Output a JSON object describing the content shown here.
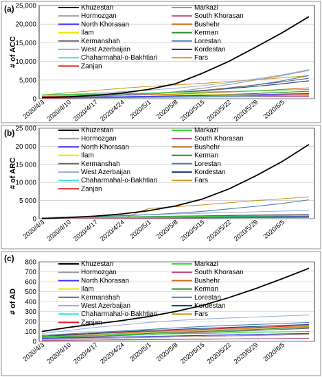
{
  "chart_data": [
    {
      "type": "line",
      "panel_label": "(a)",
      "ylabel": "# of ACC",
      "ylim": [
        0,
        25000
      ],
      "yticks": [
        0,
        5000,
        10000,
        15000,
        20000,
        25000
      ],
      "ytick_labels": [
        "0",
        "5,000",
        "10,000",
        "15,000",
        "20,000",
        "25,000"
      ],
      "grid": true,
      "legend_placement": "top-center",
      "x": [
        "2020/4/3",
        "2020/4/10",
        "2020/4/17",
        "2020/4/24",
        "2020/5/1",
        "2020/5/8",
        "2020/5/15",
        "2020/5/22",
        "2020/5/29",
        "2020/6/5",
        "2020/6/12"
      ],
      "xtick_labels": [
        "2020/4/3",
        "2020/4/10",
        "2020/4/17",
        "2020/4/24",
        "2020/5/1",
        "2020/5/8",
        "2020/5/15",
        "2020/5/22",
        "2020/5/29",
        "2020/6/5"
      ],
      "series": [
        {
          "name": "Khuzestan",
          "color": "#000000",
          "values": [
            300,
            500,
            900,
            1500,
            2500,
            4000,
            6800,
            10000,
            13800,
            17700,
            22000
          ]
        },
        {
          "name": "Markazi",
          "color": "#33dd33",
          "values": [
            1000,
            1150,
            1250,
            1350,
            1500,
            1650,
            1800,
            1950,
            2100,
            2300,
            2500
          ]
        },
        {
          "name": "Hormozgan",
          "color": "#999999",
          "values": [
            300,
            450,
            650,
            900,
            1300,
            1900,
            2800,
            3800,
            5000,
            6200,
            7600
          ]
        },
        {
          "name": "South Khorasan",
          "color": "#bb4488",
          "values": [
            150,
            200,
            250,
            300,
            350,
            400,
            450,
            500,
            550,
            600,
            650
          ]
        },
        {
          "name": "North Khorasan",
          "color": "#3333ff",
          "values": [
            400,
            450,
            500,
            550,
            650,
            750,
            850,
            1000,
            1100,
            1250,
            1400
          ]
        },
        {
          "name": "Bushehr",
          "color": "#d2691e",
          "values": [
            600,
            700,
            800,
            900,
            1050,
            1250,
            1500,
            1800,
            2100,
            2500,
            2900
          ]
        },
        {
          "name": "Ilam",
          "color": "#e8e800",
          "values": [
            800,
            850,
            900,
            950,
            1000,
            1050,
            1100,
            1150,
            1200,
            1250,
            1300
          ]
        },
        {
          "name": "Kerman",
          "color": "#2e8b2e",
          "values": [
            300,
            380,
            460,
            540,
            650,
            780,
            950,
            1150,
            1400,
            1700,
            2000
          ]
        },
        {
          "name": "Kermanshah",
          "color": "#666666",
          "values": [
            500,
            650,
            800,
            1000,
            1300,
            1700,
            2200,
            2900,
            3700,
            4500,
            5500
          ]
        },
        {
          "name": "Lorestan",
          "color": "#4a7fb5",
          "values": [
            800,
            950,
            1100,
            1250,
            1450,
            1750,
            2200,
            2800,
            3700,
            4800,
            6200
          ]
        },
        {
          "name": "West Azerbaijan",
          "color": "#9ab0d8",
          "values": [
            900,
            1200,
            1500,
            1900,
            2300,
            2800,
            3500,
            4300,
            5300,
            6400,
            7800
          ]
        },
        {
          "name": "Kordestan",
          "color": "#1f3f7a",
          "values": [
            400,
            600,
            800,
            1000,
            1300,
            1700,
            2100,
            2700,
            3300,
            4000,
            4800
          ]
        },
        {
          "name": "Chaharmahal-o-Bakhtiari",
          "color": "#44dddd",
          "values": [
            300,
            350,
            400,
            450,
            500,
            550,
            600,
            650,
            700,
            750,
            800
          ]
        },
        {
          "name": "Fars",
          "color": "#cc9922",
          "values": [
            1000,
            1600,
            2200,
            2800,
            3300,
            3700,
            4100,
            4600,
            5100,
            5600,
            6200
          ]
        },
        {
          "name": "Zanjan",
          "color": "#dd2222",
          "values": [
            200,
            260,
            320,
            380,
            450,
            520,
            600,
            700,
            800,
            950,
            1100
          ]
        }
      ]
    },
    {
      "type": "line",
      "panel_label": "(b)",
      "ylabel": "# of ARC",
      "ylim": [
        0,
        25000
      ],
      "yticks": [
        0,
        5000,
        10000,
        15000,
        20000,
        25000
      ],
      "ytick_labels": [
        "0",
        "5 000",
        "10 000",
        "15 000",
        "20 000",
        "25 000"
      ],
      "grid": true,
      "legend_placement": "top-center",
      "x": [
        "2020/4/3",
        "2020/4/10",
        "2020/4/17",
        "2020/4/24",
        "2020/5/1",
        "2020/5/8",
        "2020/5/15",
        "2020/5/22",
        "2020/5/29",
        "2020/6/5",
        "2020/6/12"
      ],
      "xtick_labels": [
        "2020/4/3",
        "2020/4/10",
        "2020/4/17",
        "2020/4/24",
        "2020/5/1",
        "2020/5/8",
        "2020/5/15",
        "2020/5/22",
        "2020/5/29",
        "2020/6/5"
      ],
      "series": [
        {
          "name": "Khuzestan",
          "color": "#000000",
          "values": [
            0,
            300,
            700,
            1300,
            2200,
            3500,
            5400,
            8200,
            11800,
            15800,
            20500
          ]
        },
        {
          "name": "Markazi",
          "color": "#33dd33",
          "values": [
            200,
            300,
            400,
            450,
            500,
            550,
            600,
            650,
            700,
            750,
            800
          ]
        },
        {
          "name": "Hormozgan",
          "color": "#999999",
          "values": [
            100,
            150,
            200,
            250,
            300,
            400,
            500,
            650,
            800,
            950,
            1100
          ]
        },
        {
          "name": "South Khorasan",
          "color": "#bb4488",
          "values": [
            50,
            80,
            110,
            140,
            170,
            200,
            230,
            260,
            290,
            320,
            350
          ]
        },
        {
          "name": "North Khorasan",
          "color": "#3333ff",
          "values": [
            100,
            150,
            200,
            250,
            300,
            350,
            400,
            450,
            500,
            550,
            600
          ]
        },
        {
          "name": "Bushehr",
          "color": "#d2691e",
          "values": [
            100,
            150,
            200,
            260,
            320,
            380,
            440,
            500,
            580,
            660,
            750
          ]
        },
        {
          "name": "Ilam",
          "color": "#e8e800",
          "values": [
            100,
            150,
            200,
            250,
            300,
            350,
            400,
            450,
            500,
            550,
            600
          ]
        },
        {
          "name": "Kerman",
          "color": "#2e8b2e",
          "values": [
            100,
            150,
            200,
            260,
            320,
            380,
            450,
            520,
            600,
            680,
            780
          ]
        },
        {
          "name": "Kermanshah",
          "color": "#666666",
          "values": [
            200,
            300,
            400,
            500,
            600,
            700,
            800,
            900,
            1000,
            1100,
            1200
          ]
        },
        {
          "name": "Lorestan",
          "color": "#4a7fb5",
          "values": [
            200,
            400,
            600,
            800,
            1100,
            1500,
            2000,
            2700,
            3400,
            4200,
            5200
          ]
        },
        {
          "name": "West Azerbaijan",
          "color": "#9ab0d8",
          "values": [
            300,
            500,
            700,
            900,
            1100,
            1300,
            1500,
            1700,
            1900,
            2100,
            2300
          ]
        },
        {
          "name": "Kordestan",
          "color": "#1f3f7a",
          "values": [
            150,
            250,
            350,
            450,
            550,
            650,
            750,
            850,
            950,
            1050,
            1200
          ]
        },
        {
          "name": "Chaharmahal-o-Bakhtiari",
          "color": "#44dddd",
          "values": [
            50,
            80,
            110,
            140,
            170,
            200,
            230,
            260,
            290,
            320,
            350
          ]
        },
        {
          "name": "Fars",
          "color": "#cc9922",
          "values": [
            0,
            0,
            0,
            0,
            2800,
            3300,
            3800,
            4400,
            5000,
            5500,
            6000
          ]
        },
        {
          "name": "Zanjan",
          "color": "#dd2222",
          "values": [
            50,
            80,
            120,
            160,
            200,
            240,
            280,
            320,
            360,
            400,
            450
          ]
        }
      ]
    },
    {
      "type": "line",
      "panel_label": "(c)",
      "ylabel": "# of AD",
      "ylim": [
        0,
        800
      ],
      "yticks": [
        0,
        100,
        200,
        300,
        400,
        500,
        600,
        700,
        800
      ],
      "ytick_labels": [
        "0",
        "100",
        "200",
        "300",
        "400",
        "500",
        "600",
        "700",
        "800"
      ],
      "grid": true,
      "legend_placement": "top-center",
      "x": [
        "2020/4/3",
        "2020/4/10",
        "2020/4/17",
        "2020/4/24",
        "2020/5/1",
        "2020/5/8",
        "2020/5/15",
        "2020/5/22",
        "2020/5/29",
        "2020/6/5",
        "2020/6/12"
      ],
      "xtick_labels": [
        "2020/4/3",
        "2020/4/10",
        "2020/4/17",
        "2020/4/24",
        "2020/5/1",
        "2020/5/8",
        "2020/5/15",
        "2020/5/22",
        "2020/5/29",
        "2020/6/5"
      ],
      "series": [
        {
          "name": "Khuzestan",
          "color": "#000000",
          "values": [
            100,
            140,
            175,
            210,
            250,
            300,
            360,
            440,
            530,
            630,
            735
          ]
        },
        {
          "name": "Markazi",
          "color": "#33dd33",
          "values": [
            50,
            55,
            60,
            65,
            70,
            75,
            80,
            85,
            90,
            95,
            100
          ]
        },
        {
          "name": "Hormozgan",
          "color": "#999999",
          "values": [
            20,
            25,
            30,
            35,
            40,
            45,
            50,
            55,
            60,
            65,
            70
          ]
        },
        {
          "name": "South Khorasan",
          "color": "#bb4488",
          "values": [
            10,
            12,
            14,
            16,
            18,
            20,
            22,
            24,
            26,
            28,
            30
          ]
        },
        {
          "name": "North Khorasan",
          "color": "#3333ff",
          "values": [
            30,
            35,
            40,
            45,
            50,
            55,
            60,
            65,
            70,
            75,
            80
          ]
        },
        {
          "name": "Bushehr",
          "color": "#d2691e",
          "values": [
            20,
            25,
            30,
            35,
            40,
            45,
            50,
            55,
            60,
            65,
            70
          ]
        },
        {
          "name": "Ilam",
          "color": "#e8e800",
          "values": [
            30,
            35,
            40,
            45,
            50,
            55,
            60,
            65,
            70,
            75,
            80
          ]
        },
        {
          "name": "Kerman",
          "color": "#2e8b2e",
          "values": [
            40,
            50,
            60,
            70,
            80,
            90,
            100,
            110,
            120,
            130,
            140
          ]
        },
        {
          "name": "Kermanshah",
          "color": "#666666",
          "values": [
            30,
            40,
            50,
            60,
            70,
            80,
            90,
            100,
            110,
            120,
            130
          ]
        },
        {
          "name": "Lorestan",
          "color": "#4a7fb5",
          "values": [
            60,
            75,
            90,
            105,
            120,
            135,
            150,
            160,
            170,
            180,
            190
          ]
        },
        {
          "name": "West Azerbaijan",
          "color": "#9ab0d8",
          "values": [
            80,
            110,
            140,
            165,
            190,
            210,
            225,
            235,
            245,
            255,
            265
          ]
        },
        {
          "name": "Kordestan",
          "color": "#1f3f7a",
          "values": [
            50,
            65,
            80,
            95,
            110,
            120,
            130,
            140,
            150,
            160,
            170
          ]
        },
        {
          "name": "Chaharmahal-o-Bakhtiari",
          "color": "#44dddd",
          "values": [
            10,
            12,
            14,
            16,
            18,
            20,
            22,
            24,
            26,
            28,
            30
          ]
        },
        {
          "name": "Fars",
          "color": "#cc9922",
          "values": [
            50,
            60,
            70,
            80,
            90,
            100,
            110,
            120,
            130,
            140,
            150
          ]
        },
        {
          "name": "Zanjan",
          "color": "#dd2222",
          "values": [
            60,
            70,
            80,
            90,
            100,
            110,
            120,
            130,
            140,
            150,
            160
          ]
        }
      ]
    }
  ]
}
